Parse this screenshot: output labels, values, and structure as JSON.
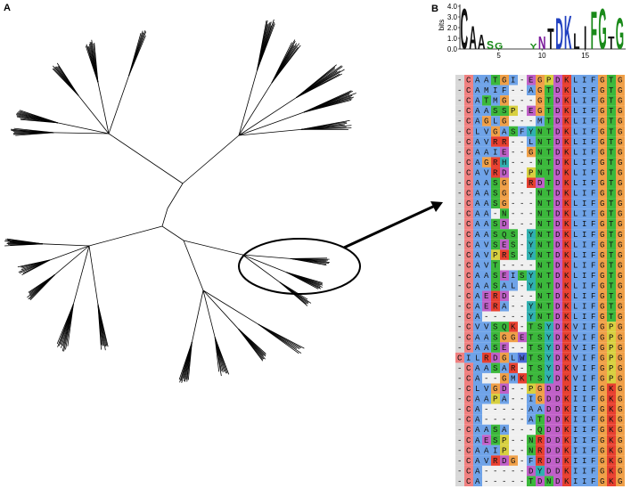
{
  "panels": {
    "a_label": "A",
    "b_label": "B"
  },
  "logo": {
    "y_axis_label": "bits",
    "yticks": [
      "0.0",
      "1.0",
      "2.0",
      "3.0",
      "4.0"
    ],
    "xticks": [
      "5",
      "10",
      "15"
    ],
    "columns": [
      {
        "pos": 1,
        "letter": "C",
        "bits": 3.9
      },
      {
        "pos": 2,
        "letter": "A",
        "bits": 2.2
      },
      {
        "pos": 3,
        "letter": "A",
        "bits": 1.4
      },
      {
        "pos": 4,
        "letter": "S",
        "bits": 0.8
      },
      {
        "pos": 5,
        "letter": "G",
        "bits": 0.6
      },
      {
        "pos": 9,
        "letter": "Y",
        "bits": 0.5
      },
      {
        "pos": 10,
        "letter": "N",
        "bits": 1.2
      },
      {
        "pos": 11,
        "letter": "T",
        "bits": 2.0
      },
      {
        "pos": 12,
        "letter": "D",
        "bits": 3.0
      },
      {
        "pos": 13,
        "letter": "K",
        "bits": 3.2
      },
      {
        "pos": 14,
        "letter": "L",
        "bits": 1.5
      },
      {
        "pos": 15,
        "letter": "I",
        "bits": 2.2
      },
      {
        "pos": 16,
        "letter": "F",
        "bits": 3.6
      },
      {
        "pos": 17,
        "letter": "G",
        "bits": 3.9
      },
      {
        "pos": 18,
        "letter": "T",
        "bits": 1.2
      },
      {
        "pos": 19,
        "letter": "G",
        "bits": 3.0
      }
    ]
  },
  "alignment": {
    "rows": [
      "-CAATGI-EGPDKLIFGTG",
      "-CAMIF--AGTDKLIFGTG",
      "-CATMG---GTDKLIFGTG",
      "-CAASSP-EGTDKLIFGTG",
      "-CAGLG---MTDKLIFGTG",
      "-CLVGASFYNTDKLIFGTG",
      "-CAVRR--LNTDKLIFGTG",
      "-CAAIE--GNTDKLIFGTG",
      "-CAGRH---NTDKLIFGTG",
      "-CAVRD--PNTDKLIFGTG",
      "-CAASG--RDTDKLIFGTG",
      "-CAASG---NTDKLIFGTG",
      "-CAASG---NTDKLIFGTG",
      "-CAA-N---NTDKLIFGTG",
      "-CAASD---NTDKLIFGTG",
      "-CAASQS-YNTDKLIFGTG",
      "-CAVSES-YNTDKLIFGTG",
      "-CAVPRS-YNTDKLIFGTG",
      "-CAVT----NTDKLIFGTG",
      "-CAASEISYNTDKLIFGTG",
      "-CAASAL-YNTDKLIFGTG",
      "-CAERD---NTDKLIFGTG",
      "-CAERA--YNTDKLIFGTG",
      "-CA-----YNTDKLIFGTG",
      "-CVVSQK-TSYDKVIFGPG",
      "-CAASGGETSYDKVIFGPG",
      "-CAASE--TSYDKVIFGPG",
      "CILRDGLWTSYDKVIFGPG",
      "-CAASAR-TSYDKVIFGPG",
      "-CA--GMKTSYDKVIFGPG",
      "-CLVGD--PGDDKIIFGKG",
      "-CAAPA--IGDDKIIFGKG",
      "-CA-----AADDKIIFGKG",
      "-CA-----ATDDKIIFGKG",
      "-CAASA---QDDKIIFGKG",
      "-CAESP--NRDDKIIFGKG",
      "-CAAIP--NRDDKIIFGKG",
      "-CAVRDG-FRDDKIIFGKG",
      "-CA-----DYDDKIIFGKG",
      "-CA-----TDNDKIIFGKG"
    ]
  }
}
